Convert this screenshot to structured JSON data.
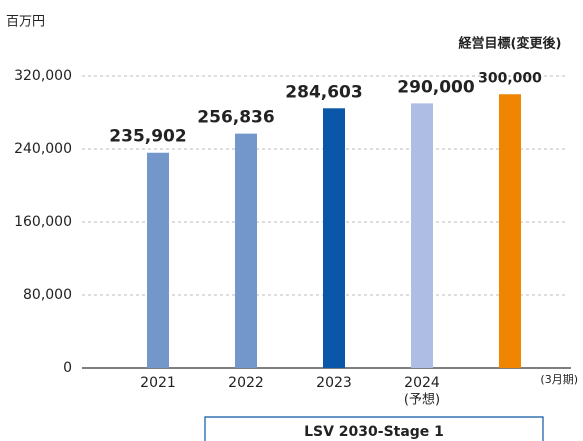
{
  "chart_data": {
    "type": "bar",
    "y_axis_label": "百万円",
    "categories": [
      "2021",
      "2022",
      "2023",
      "2024",
      null
    ],
    "values": [
      235902,
      256836,
      284603,
      290000,
      300000
    ],
    "value_labels": [
      "235,902",
      "256,836",
      "284,603",
      "290,000",
      "300,000"
    ],
    "colors": [
      "#7396cb",
      "#7396cb",
      "#0a56a8",
      "#adbde3",
      "#ef8500"
    ],
    "value_label_colors": [
      "#595959",
      "#595959",
      "#111111",
      "#111111",
      "#ef8500"
    ],
    "forecast_note": "(予想)",
    "target_label": "経営目標(変更後)",
    "period_note": "(3月期)",
    "bracket_label": "LSV 2030-Stage 1",
    "ylim": [
      0,
      320000
    ],
    "yticks": [
      0,
      {
        "value": 80000,
        "label": "80,000"
      },
      {
        "value": 160000,
        "label": "160,000"
      },
      {
        "value": 240000,
        "label": "240,000"
      },
      {
        "value": 320000,
        "label": "320,000"
      }
    ],
    "grid": true
  }
}
